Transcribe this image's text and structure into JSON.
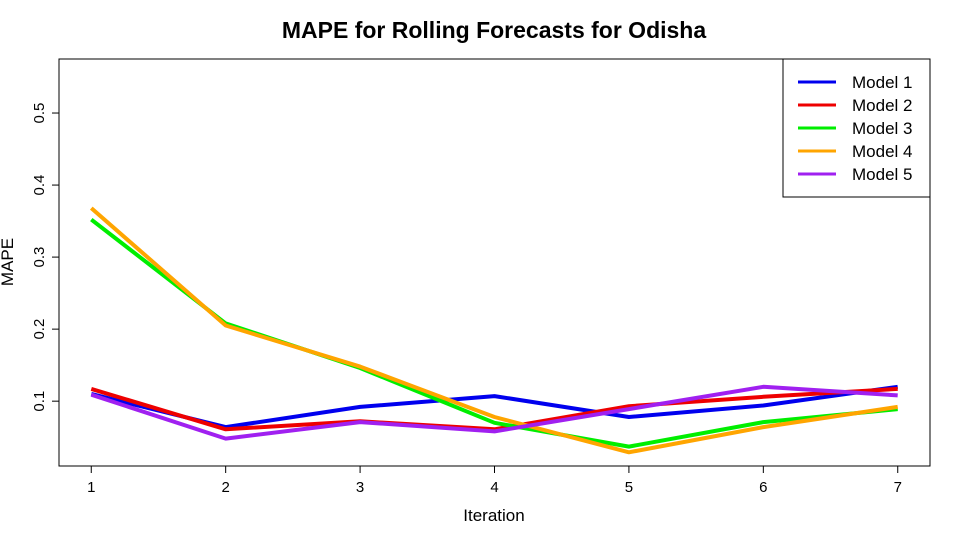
{
  "chart_data": {
    "type": "line",
    "title": "MAPE for Rolling Forecasts for Odisha",
    "xlabel": "Iteration",
    "ylabel": "MAPE",
    "x": [
      1,
      2,
      3,
      4,
      5,
      6,
      7
    ],
    "xlim": [
      0.76,
      7.24
    ],
    "ylim": [
      0.01,
      0.575
    ],
    "xticks": [
      "1",
      "2",
      "3",
      "4",
      "5",
      "6",
      "7"
    ],
    "yticks": [
      "0.1",
      "0.2",
      "0.3",
      "0.4",
      "0.5"
    ],
    "ytick_values": [
      0.1,
      0.2,
      0.3,
      0.4,
      0.5
    ],
    "grid": false,
    "legend_position": "top-right",
    "series": [
      {
        "name": "Model 1",
        "color": "#0000ee",
        "values": [
          0.11,
          0.064,
          0.092,
          0.107,
          0.078,
          0.094,
          0.12
        ]
      },
      {
        "name": "Model 2",
        "color": "#ee0000",
        "values": [
          0.117,
          0.061,
          0.072,
          0.061,
          0.093,
          0.106,
          0.117
        ]
      },
      {
        "name": "Model 3",
        "color": "#00ee00",
        "values": [
          0.352,
          0.208,
          0.146,
          0.07,
          0.037,
          0.071,
          0.089
        ]
      },
      {
        "name": "Model 4",
        "color": "#ffa500",
        "values": [
          0.368,
          0.205,
          0.148,
          0.078,
          0.029,
          0.064,
          0.092
        ]
      },
      {
        "name": "Model 5",
        "color": "#a020f0",
        "values": [
          0.109,
          0.048,
          0.071,
          0.058,
          0.089,
          0.12,
          0.108
        ]
      }
    ]
  }
}
